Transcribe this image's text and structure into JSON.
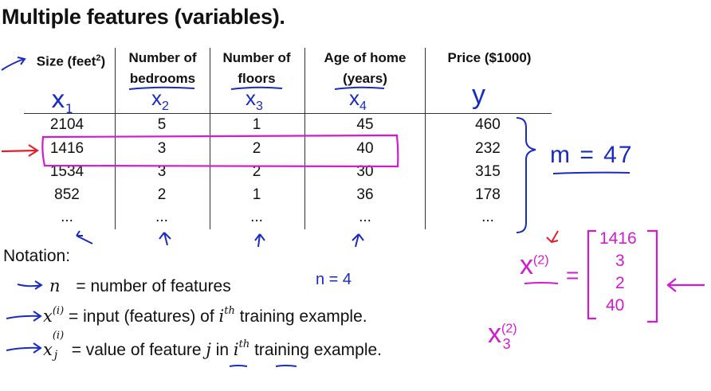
{
  "title": "Multiple features (variables).",
  "table": {
    "headers": [
      [
        "Size (feet",
        "2",
        ")"
      ],
      [
        "Number of",
        "bedrooms"
      ],
      [
        "Number of",
        "floors"
      ],
      [
        "Age of home",
        "(years)"
      ],
      [
        "Price ($1000)"
      ]
    ],
    "rows": [
      [
        "2104",
        "5",
        "1",
        "45",
        "460"
      ],
      [
        "1416",
        "3",
        "2",
        "40",
        "232"
      ],
      [
        "1534",
        "3",
        "2",
        "30",
        "315"
      ],
      [
        "852",
        "2",
        "1",
        "36",
        "178"
      ],
      [
        "...",
        "...",
        "...",
        "...",
        "..."
      ]
    ]
  },
  "handwritten": {
    "x1": "x",
    "x1_sub": "1",
    "x2": "x",
    "x2_sub": "2",
    "x3": "x",
    "x3_sub": "3",
    "x4": "x",
    "x4_sub": "4",
    "y": "y",
    "m_eq": "m = 47",
    "n_eq": "n = 4",
    "x2_vec_base": "x",
    "x2_vec_sup": "(2)",
    "vector": [
      "1416",
      "3",
      "2",
      "40"
    ],
    "x23_base": "x",
    "x23_sup": "(2)",
    "x23_sub": "3"
  },
  "notation": {
    "heading": "Notation:",
    "line1_sym": "n",
    "line1_text": "= number of features",
    "line2_sym": "x",
    "line2_sup": "(i)",
    "line2_text_a": "= input (features) of ",
    "line2_i": "i",
    "line2_th": "th",
    "line2_text_b": " training example.",
    "line3_sym": "x",
    "line3_sup": "(i)",
    "line3_sub": "j",
    "line3_text_a": "= value of feature ",
    "line3_j": "j",
    "line3_in": " in  ",
    "line3_i": "i",
    "line3_th": "th",
    "line3_text_b": " training example."
  },
  "colors": {
    "ink_blue": "#1a2bbf",
    "ink_magenta": "#d21ad2",
    "ink_red": "#e0202a"
  }
}
